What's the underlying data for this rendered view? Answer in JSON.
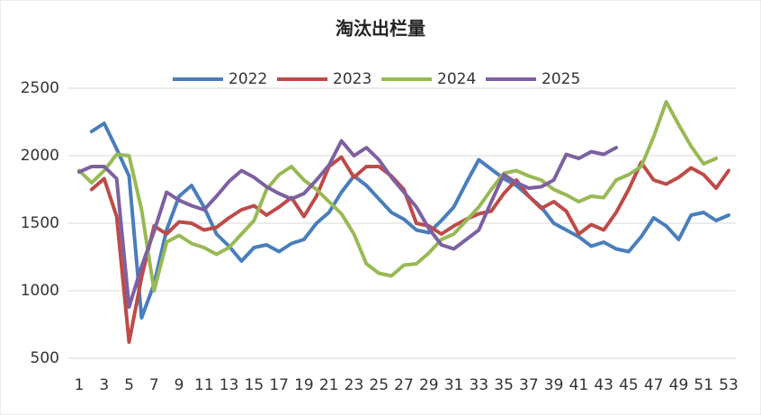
{
  "chart_data": {
    "type": "line",
    "title": "淘汰出栏量",
    "x": [
      1,
      2,
      3,
      4,
      5,
      6,
      7,
      8,
      9,
      10,
      11,
      12,
      13,
      14,
      15,
      16,
      17,
      18,
      19,
      20,
      21,
      22,
      23,
      24,
      25,
      26,
      27,
      28,
      29,
      30,
      31,
      32,
      33,
      34,
      35,
      36,
      37,
      38,
      39,
      40,
      41,
      42,
      43,
      44,
      45,
      46,
      47,
      48,
      49,
      50,
      51,
      52,
      53
    ],
    "xlim": [
      1,
      53
    ],
    "xticks": [
      1,
      3,
      5,
      7,
      9,
      11,
      13,
      15,
      17,
      19,
      21,
      23,
      25,
      27,
      29,
      31,
      33,
      35,
      37,
      39,
      41,
      43,
      45,
      47,
      49,
      51,
      53
    ],
    "ylim": [
      500,
      2500
    ],
    "yticks": [
      500,
      1000,
      1500,
      2000,
      2500
    ],
    "grid": true,
    "legend": "top",
    "series": [
      {
        "name": "2022",
        "color": "#4a7ebb",
        "values": [
          null,
          2180,
          2240,
          2050,
          1850,
          800,
          1050,
          1450,
          1700,
          1780,
          1620,
          1420,
          1330,
          1220,
          1320,
          1340,
          1290,
          1350,
          1380,
          1500,
          1580,
          1730,
          1850,
          1780,
          1680,
          1580,
          1530,
          1450,
          1430,
          1520,
          1620,
          1800,
          1970,
          1900,
          1830,
          1780,
          1700,
          1620,
          1500,
          1450,
          1400,
          1330,
          1360,
          1310,
          1290,
          1400,
          1540,
          1480,
          1380,
          1560,
          1580,
          1520,
          1560
        ]
      },
      {
        "name": "2023",
        "color": "#be4b48",
        "values": [
          null,
          1750,
          1830,
          1550,
          620,
          1100,
          1480,
          1420,
          1510,
          1500,
          1450,
          1470,
          1540,
          1600,
          1630,
          1560,
          1620,
          1690,
          1550,
          1700,
          1920,
          1990,
          1840,
          1920,
          1920,
          1850,
          1750,
          1500,
          1480,
          1420,
          1480,
          1530,
          1570,
          1590,
          1720,
          1820,
          1700,
          1610,
          1660,
          1590,
          1420,
          1490,
          1450,
          1580,
          1750,
          1950,
          1820,
          1790,
          1840,
          1910,
          1860,
          1760,
          1890
        ]
      },
      {
        "name": "2024",
        "color": "#98b954",
        "values": [
          1890,
          1800,
          1890,
          2010,
          2000,
          1600,
          1000,
          1360,
          1410,
          1350,
          1320,
          1270,
          1320,
          1420,
          1520,
          1750,
          1860,
          1920,
          1820,
          1750,
          1660,
          1570,
          1420,
          1200,
          1130,
          1110,
          1190,
          1200,
          1280,
          1380,
          1420,
          1520,
          1620,
          1750,
          1870,
          1890,
          1850,
          1820,
          1750,
          1710,
          1660,
          1700,
          1690,
          1820,
          1860,
          1920,
          2140,
          2400,
          2230,
          2070,
          1940,
          1980,
          null
        ]
      },
      {
        "name": "2025",
        "color": "#7d60a0",
        "values": [
          1880,
          1920,
          1920,
          1830,
          880,
          1180,
          1440,
          1730,
          1670,
          1630,
          1600,
          1700,
          1810,
          1890,
          1840,
          1770,
          1720,
          1680,
          1720,
          1820,
          1930,
          2110,
          2000,
          2060,
          1970,
          1840,
          1730,
          1620,
          1460,
          1340,
          1310,
          1380,
          1450,
          1660,
          1860,
          1800,
          1760,
          1770,
          1820,
          2010,
          1980,
          2030,
          2010,
          2060,
          null,
          null,
          null,
          null,
          null,
          null,
          null,
          null,
          null
        ]
      }
    ]
  }
}
